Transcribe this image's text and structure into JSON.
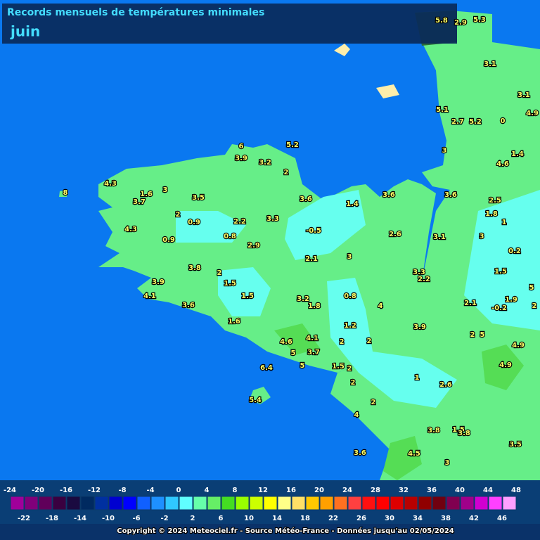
{
  "header": {
    "title": "Records mensuels de températures minimales",
    "subtitle": "juin"
  },
  "stations": [
    5.8,
    2.9,
    5.3,
    3.1,
    3.1,
    4.9,
    5.1,
    2.7,
    5.2,
    0,
    3,
    1.4,
    4.6,
    6,
    3.9,
    5.2,
    3.2,
    2,
    4.3,
    1.6,
    3,
    3.7,
    3.5,
    3.6,
    1.4,
    3.6,
    3.6,
    2.5,
    1.8,
    2,
    0.9,
    2.2,
    3.3,
    1,
    4.3,
    0.8,
    -0.5,
    2.6,
    3.1,
    3,
    0.9,
    2.9,
    0.2,
    2.1,
    3,
    3.8,
    2,
    3.3,
    2.2,
    1.5,
    3.9,
    1.5,
    5,
    4.1,
    1.5,
    0.8,
    3.2,
    1.9,
    3.6,
    1.8,
    4,
    2.1,
    -0.2,
    2,
    1.6,
    1.2,
    3.9,
    2,
    5,
    4.1,
    4.6,
    2,
    2,
    4.9,
    3.7,
    5,
    5,
    1.5,
    2,
    6.4,
    4.9,
    1,
    2.6,
    2,
    5.4,
    2,
    4,
    3.8,
    1.5,
    3.8,
    3.5,
    3.6,
    4.5,
    3,
    8
  ],
  "legend": {
    "top_ticks": [
      -24,
      -20,
      -16,
      -12,
      -8,
      -4,
      0,
      4,
      8,
      12,
      16,
      20,
      24,
      28,
      32,
      36,
      40,
      44,
      48
    ],
    "bottom_ticks": [
      -22,
      -18,
      -14,
      -10,
      -6,
      -2,
      2,
      6,
      10,
      14,
      18,
      22,
      26,
      30,
      34,
      38,
      42,
      46
    ],
    "colors": [
      "#a0009a",
      "#80007a",
      "#60005a",
      "#3a0040",
      "#1a0a40",
      "#002a60",
      "#0030a0",
      "#0000d0",
      "#0000ff",
      "#1060ff",
      "#1e90ff",
      "#30c8ff",
      "#60ffff",
      "#66ffaa",
      "#66ee66",
      "#44dd22",
      "#99ff00",
      "#ccff00",
      "#ffff00",
      "#ffff88",
      "#ffe066",
      "#ffc800",
      "#ffa000",
      "#ff7020",
      "#ff4040",
      "#ff1010",
      "#ff0000",
      "#dd0000",
      "#b80000",
      "#900000",
      "#700010",
      "#800050",
      "#a0008a",
      "#d000d0",
      "#ff40ff",
      "#ff9fff"
    ]
  },
  "footer": {
    "copyright": "Copyright © 2024 Meteociel.fr - Source Météo-France - Données jusqu'au 02/05/2024"
  }
}
